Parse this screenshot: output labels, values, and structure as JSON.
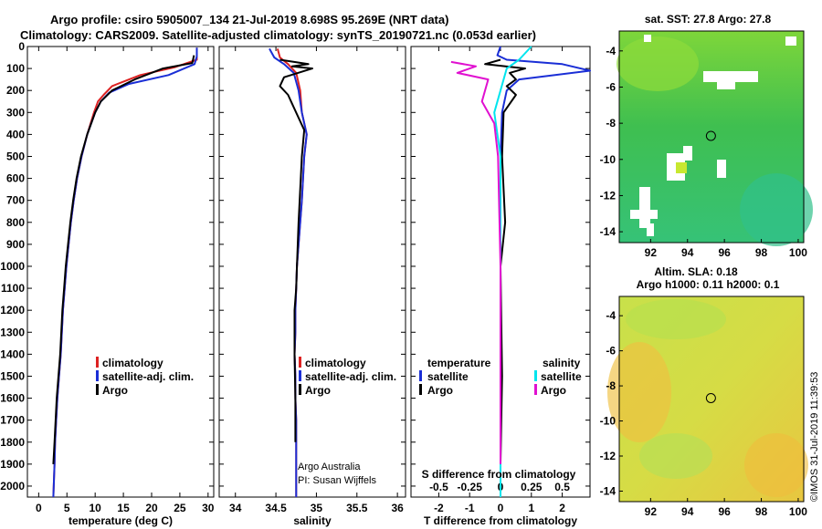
{
  "header": {
    "line1": "Argo profile: csiro 5905007_134 21-Jul-2019 8.698S 95.269E (NRT data)",
    "line2": "Climatology: CARS2009. Satellite-adjusted climatology: synTS_20190721.nc (0.053d earlier)"
  },
  "map_sst": {
    "title": "sat. SST: 27.8 Argo: 27.8"
  },
  "map_sla": {
    "title_line1": "Altim. SLA: 0.18",
    "title_line2": "Argo h1000: 0.11 h2000: 0.1"
  },
  "footer": {
    "imos": "©IMOS 31-Jul-2019 11:39:53"
  },
  "legend_temp": [
    "climatology",
    "satellite-adj. clim.",
    "Argo"
  ],
  "legend_sal": [
    "climatology",
    "satellite-adj. clim.",
    "Argo"
  ],
  "legend_diff": {
    "temperature": "temperature",
    "salinity": "salinity",
    "t_satellite": "satellite",
    "t_argo": "Argo",
    "s_satellite": "satellite",
    "s_argo": "Argo"
  },
  "sal_credit": [
    "Argo Australia",
    "PI: Susan Wijffels"
  ],
  "colors": {
    "clim": "#dd2222",
    "sat": "#1a2ed6",
    "argo": "#000000",
    "s_sat": "#00e5ee",
    "s_argo": "#e010d0"
  },
  "chart_data": [
    {
      "type": "line",
      "xlabel": "temperature (deg C)",
      "ylabel": "",
      "xlim": [
        -2,
        31
      ],
      "ylim": [
        2050,
        0
      ],
      "xticks": [
        0,
        5,
        10,
        15,
        20,
        25,
        30
      ],
      "yticks": [
        0,
        100,
        200,
        300,
        400,
        500,
        600,
        700,
        800,
        900,
        1000,
        1100,
        1200,
        1300,
        1400,
        1500,
        1600,
        1700,
        1800,
        1900,
        2000
      ],
      "series": [
        {
          "name": "climatology",
          "x": [
            28.0,
            28.0,
            24,
            18,
            13,
            11.5,
            10.5,
            9.8,
            8.6,
            7.6,
            6.8,
            6.2,
            5.7,
            5.3,
            4.9,
            4.6,
            4.3,
            3.9,
            3.6,
            3.3,
            3.1,
            2.9,
            2.8,
            2.6
          ],
          "y": [
            5,
            60,
            95,
            130,
            180,
            220,
            250,
            300,
            400,
            500,
            600,
            700,
            800,
            900,
            1000,
            1100,
            1200,
            1400,
            1500,
            1600,
            1700,
            1800,
            1900,
            2050
          ]
        },
        {
          "name": "satellite-adj. clim.",
          "x": [
            28.0,
            28.0,
            27.6,
            23,
            16,
            12.5,
            11,
            10,
            8.6,
            7.6,
            6.8,
            6.2,
            5.7,
            5.3,
            4.9,
            4.6,
            4.3,
            3.9,
            3.6,
            3.3,
            3.1,
            2.9,
            2.8,
            2.6
          ],
          "y": [
            5,
            45,
            80,
            130,
            170,
            210,
            250,
            300,
            400,
            500,
            600,
            700,
            800,
            900,
            1000,
            1100,
            1200,
            1400,
            1500,
            1600,
            1700,
            1800,
            1900,
            2050
          ]
        },
        {
          "name": "Argo",
          "x": [
            27.5,
            27.2,
            22,
            17,
            13,
            11,
            10,
            8.6,
            7.5,
            6.7,
            6.1,
            5.6,
            5.2,
            4.8,
            4.5,
            4.2,
            3.8,
            3.5,
            3.2,
            3.0,
            2.8,
            2.6
          ],
          "y": [
            40,
            75,
            100,
            150,
            200,
            250,
            300,
            400,
            500,
            600,
            700,
            800,
            900,
            1000,
            1100,
            1200,
            1400,
            1500,
            1600,
            1700,
            1800,
            1900
          ]
        }
      ]
    },
    {
      "type": "line",
      "xlabel": "salinity",
      "ylabel": "",
      "xlim": [
        33.8,
        36.1
      ],
      "ylim": [
        2050,
        0
      ],
      "xticks": [
        34,
        34.5,
        35,
        35.5,
        36
      ],
      "series": [
        {
          "name": "climatology",
          "x": [
            34.52,
            34.55,
            34.65,
            34.75,
            34.8,
            34.82,
            34.88,
            34.85,
            34.82,
            34.78,
            34.76,
            34.75,
            34.74,
            34.74,
            34.73,
            34.74,
            34.74,
            34.75,
            34.75,
            34.75,
            34.75
          ],
          "y": [
            10,
            50,
            80,
            120,
            200,
            300,
            400,
            500,
            700,
            900,
            1000,
            1100,
            1200,
            1300,
            1400,
            1500,
            1600,
            1700,
            1800,
            1900,
            2050
          ]
        },
        {
          "name": "satellite-adj. clim.",
          "x": [
            34.42,
            34.48,
            34.6,
            34.72,
            34.78,
            34.82,
            34.88,
            34.85,
            34.82,
            34.78,
            34.76,
            34.75,
            34.74,
            34.74,
            34.73,
            34.74,
            34.74,
            34.75,
            34.75,
            34.75,
            34.75
          ],
          "y": [
            10,
            50,
            80,
            120,
            200,
            300,
            400,
            500,
            700,
            900,
            1000,
            1100,
            1200,
            1300,
            1400,
            1500,
            1600,
            1700,
            1800,
            1900,
            2050
          ]
        },
        {
          "name": "Argo",
          "x": [
            34.55,
            34.9,
            34.7,
            34.95,
            34.6,
            34.55,
            34.65,
            34.7,
            34.85,
            34.82,
            34.78,
            34.76,
            34.75,
            34.73,
            34.73,
            34.74,
            34.74
          ],
          "y": [
            60,
            80,
            90,
            100,
            140,
            180,
            220,
            260,
            380,
            500,
            800,
            1000,
            1100,
            1200,
            1400,
            1600,
            1800
          ]
        }
      ]
    },
    {
      "type": "line",
      "xlabel": "T difference from climatology",
      "ylabel": "",
      "xlim": [
        -2.9,
        2.9
      ],
      "ylim": [
        2050,
        0
      ],
      "xticks": [
        -2,
        -1,
        0,
        1,
        2
      ],
      "secondary_xlabel": "S difference from climatology",
      "secondary_xticks": [
        -0.5,
        -0.25,
        0,
        0.25,
        0.5
      ],
      "series": [
        {
          "name": "temperature satellite",
          "x": [
            0,
            -0.1,
            0.2,
            2.0,
            2.9,
            0.6,
            0.2,
            0.05,
            0,
            0,
            0
          ],
          "y": [
            0,
            40,
            60,
            80,
            110,
            150,
            200,
            300,
            500,
            1000,
            2050
          ]
        },
        {
          "name": "temperature Argo",
          "x": [
            0,
            -0.5,
            0.8,
            0.3,
            0.5,
            0.2,
            0.5,
            0.1,
            0.05,
            0.15,
            0,
            0.05,
            0
          ],
          "y": [
            60,
            80,
            100,
            120,
            150,
            180,
            220,
            300,
            500,
            800,
            1000,
            1500,
            1900
          ]
        },
        {
          "name": "salinity satellite",
          "x": [
            0.25,
            0.15,
            0.05,
            0,
            -0.05,
            0,
            0,
            0
          ],
          "y": [
            0,
            60,
            100,
            200,
            300,
            500,
            1000,
            2050
          ]
        },
        {
          "name": "salinity Argo",
          "x": [
            -0.4,
            -0.2,
            -0.35,
            -0.1,
            -0.15,
            -0.05,
            -0.02,
            0,
            0
          ],
          "y": [
            70,
            90,
            120,
            150,
            250,
            350,
            500,
            1000,
            1900
          ]
        }
      ]
    },
    {
      "type": "heatmap",
      "title": "sat. SST: 27.8 Argo: 27.8",
      "xlim": [
        90.3,
        100.3
      ],
      "ylim": [
        -14.6,
        -2.9
      ],
      "xticks": [
        92,
        94,
        96,
        98,
        100
      ],
      "yticks": [
        -4,
        -6,
        -8,
        -10,
        -12,
        -14
      ],
      "marker": {
        "x": 95.269,
        "y": -8.698
      }
    },
    {
      "type": "heatmap",
      "title": "Altim. SLA: 0.18",
      "xlim": [
        90.3,
        100.3
      ],
      "ylim": [
        -14.6,
        -2.9
      ],
      "xticks": [
        92,
        94,
        96,
        98,
        100
      ],
      "yticks": [
        -4,
        -6,
        -8,
        -10,
        -12,
        -14
      ],
      "marker": {
        "x": 95.269,
        "y": -8.698
      }
    }
  ]
}
